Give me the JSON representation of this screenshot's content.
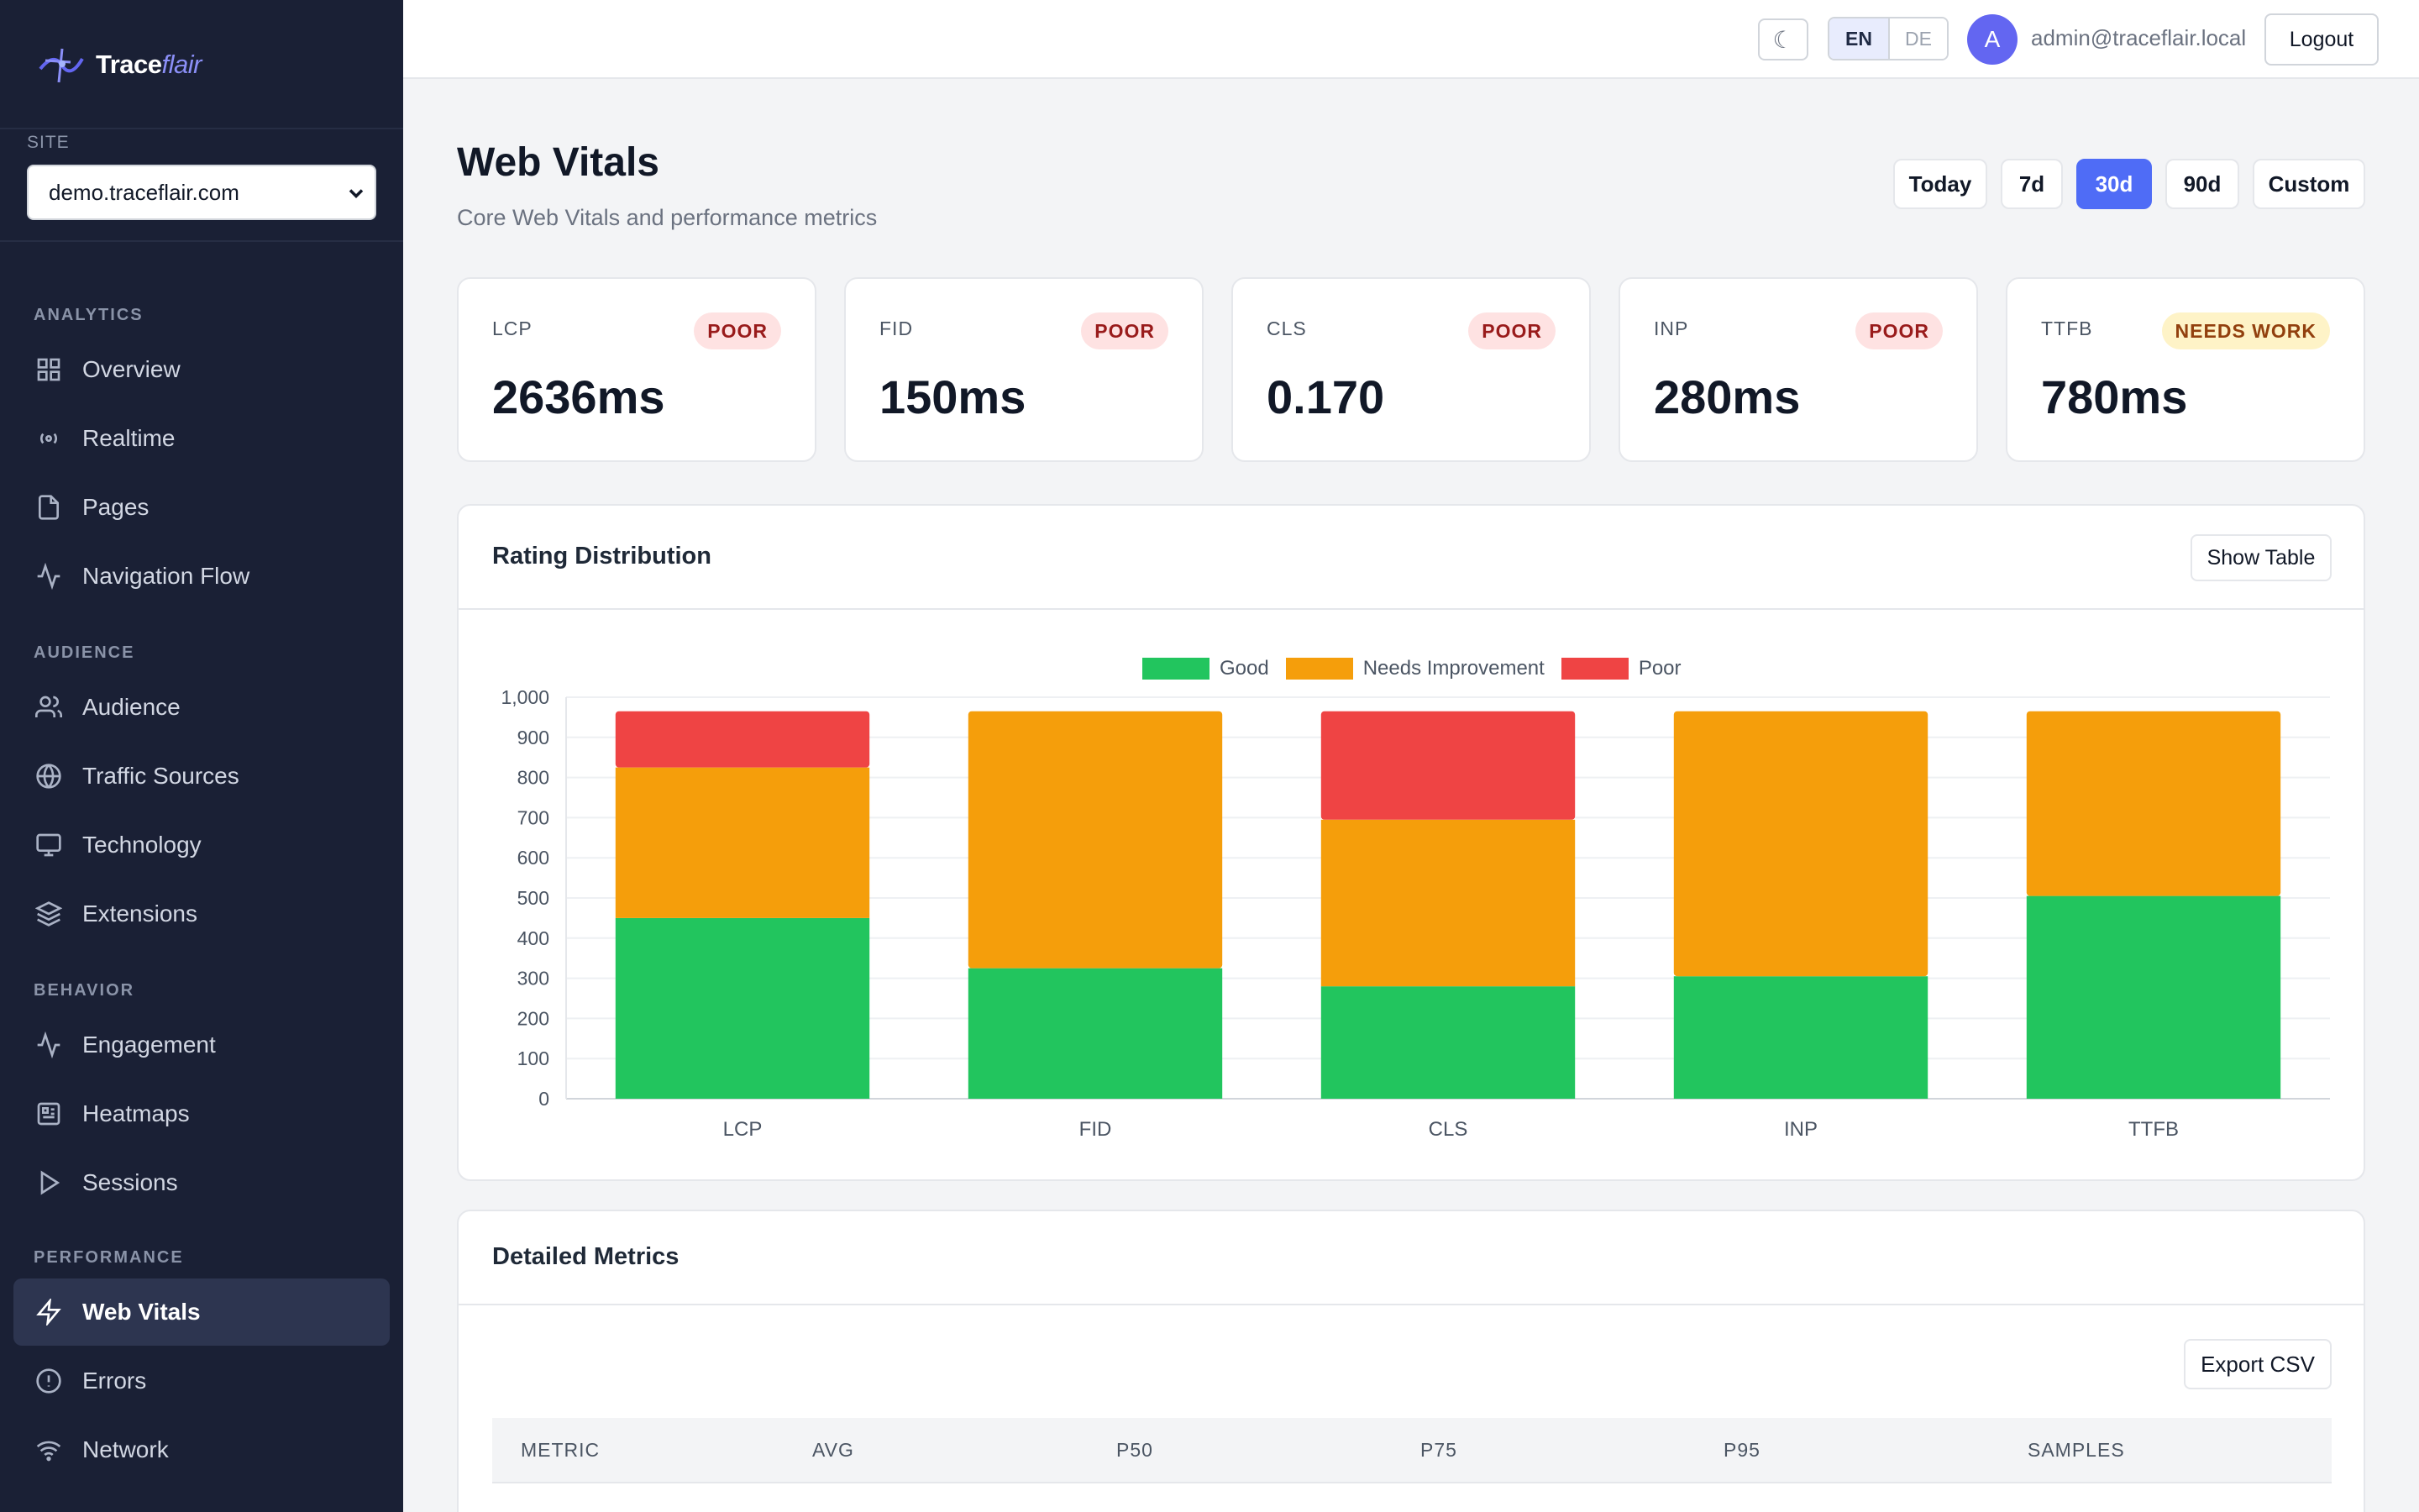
{
  "app": {
    "logo_main": "Trace",
    "logo_accent": "flair"
  },
  "sidebar": {
    "site_label": "SITE",
    "site_selected": "demo.traceflair.com",
    "sections": [
      {
        "label": "ANALYTICS",
        "items": [
          {
            "label": "Overview",
            "icon": "grid-icon"
          },
          {
            "label": "Realtime",
            "icon": "broadcast-icon"
          },
          {
            "label": "Pages",
            "icon": "file-icon"
          },
          {
            "label": "Navigation Flow",
            "icon": "activity-icon"
          }
        ]
      },
      {
        "label": "AUDIENCE",
        "items": [
          {
            "label": "Audience",
            "icon": "users-icon"
          },
          {
            "label": "Traffic Sources",
            "icon": "globe-icon"
          },
          {
            "label": "Technology",
            "icon": "monitor-icon"
          },
          {
            "label": "Extensions",
            "icon": "layers-icon"
          }
        ]
      },
      {
        "label": "BEHAVIOR",
        "items": [
          {
            "label": "Engagement",
            "icon": "activity-icon"
          },
          {
            "label": "Heatmaps",
            "icon": "heatmap-icon"
          },
          {
            "label": "Sessions",
            "icon": "play-icon"
          }
        ]
      },
      {
        "label": "PERFORMANCE",
        "items": [
          {
            "label": "Web Vitals",
            "icon": "zap-icon",
            "active": true
          },
          {
            "label": "Errors",
            "icon": "alert-circle-icon"
          },
          {
            "label": "Network",
            "icon": "wifi-icon"
          }
        ]
      }
    ]
  },
  "topbar": {
    "theme_icon": "☾",
    "lang_active": "EN",
    "lang_other": "DE",
    "avatar_letter": "A",
    "user_email": "admin@traceflair.local",
    "logout_label": "Logout"
  },
  "header": {
    "title": "Web Vitals",
    "subtitle": "Core Web Vitals and performance metrics",
    "ranges": [
      "Today",
      "7d",
      "30d",
      "90d",
      "Custom"
    ],
    "active_range": "30d"
  },
  "kpis": [
    {
      "label": "LCP",
      "value": "2636ms",
      "badge": "POOR",
      "status": "poor"
    },
    {
      "label": "FID",
      "value": "150ms",
      "badge": "POOR",
      "status": "poor"
    },
    {
      "label": "CLS",
      "value": "0.170",
      "badge": "POOR",
      "status": "poor"
    },
    {
      "label": "INP",
      "value": "280ms",
      "badge": "POOR",
      "status": "poor"
    },
    {
      "label": "TTFB",
      "value": "780ms",
      "badge": "NEEDS WORK",
      "status": "needs-work"
    }
  ],
  "rating_panel": {
    "title": "Rating Distribution",
    "toggle_label": "Show Table"
  },
  "chart_data": {
    "type": "bar",
    "stacked": true,
    "categories": [
      "LCP",
      "FID",
      "CLS",
      "INP",
      "TTFB"
    ],
    "series": [
      {
        "name": "Good",
        "color": "#22c55e",
        "values": [
          450,
          325,
          280,
          305,
          505
        ]
      },
      {
        "name": "Needs Improvement",
        "color": "#f59e0b",
        "values": [
          375,
          640,
          415,
          660,
          460
        ]
      },
      {
        "name": "Poor",
        "color": "#ef4444",
        "values": [
          140,
          0,
          270,
          0,
          0
        ]
      }
    ],
    "ylim": [
      0,
      1000
    ],
    "yticks": [
      "0",
      "100",
      "200",
      "300",
      "400",
      "500",
      "600",
      "700",
      "800",
      "900",
      "1,000"
    ],
    "legend_position": "top-center",
    "grid": true
  },
  "detail_panel": {
    "title": "Detailed Metrics",
    "export_label": "Export CSV",
    "columns": [
      "METRIC",
      "AVG",
      "P50",
      "P75",
      "P95",
      "SAMPLES"
    ]
  }
}
